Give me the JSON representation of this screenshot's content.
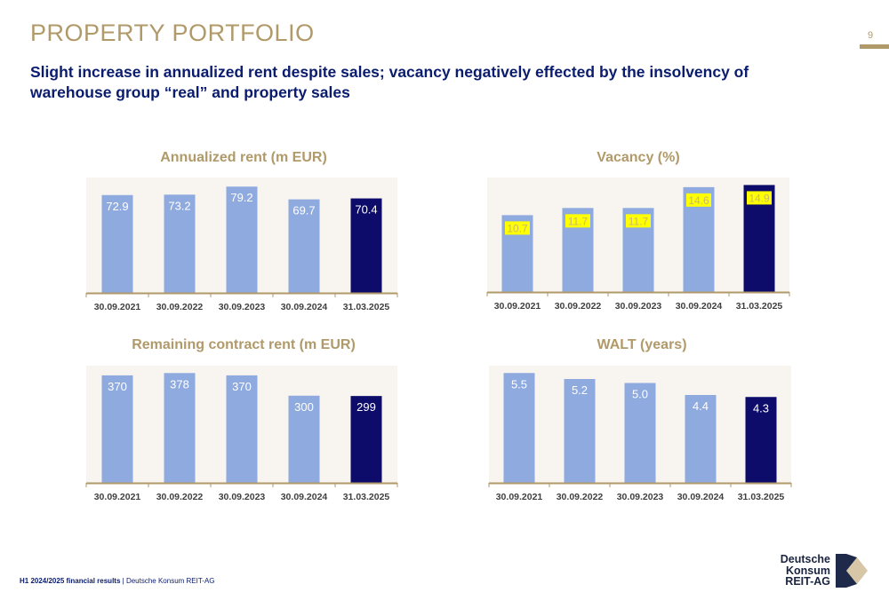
{
  "header": {
    "title": "PROPERTY PORTFOLIO",
    "page_number": "9",
    "subtitle": "Slight increase in annualized rent despite sales; vacancy negatively effected by the insolvency of warehouse group “real” and property sales"
  },
  "colors": {
    "bar_light": "#8eaadf",
    "bar_dark": "#0d0c6b",
    "accent_gold": "#b19a6a",
    "panel_bg": "#f8f4ef",
    "label_highlight": "#ffff00"
  },
  "chart_data": [
    {
      "type": "bar",
      "title": "Annualized rent (m EUR)",
      "categories": [
        "30.09.2021",
        "30.09.2022",
        "30.09.2023",
        "30.09.2024",
        "31.03.2025"
      ],
      "values": [
        72.9,
        73.2,
        79.2,
        69.7,
        70.4
      ],
      "labels": [
        "72.9",
        "73.2",
        "79.2",
        "69.7",
        "70.4"
      ],
      "highlight_last": true,
      "grid": false
    },
    {
      "type": "bar",
      "title": "Vacancy (%)",
      "categories": [
        "30.09.2021",
        "30.09.2022",
        "30.09.2023",
        "30.09.2024",
        "31.03.2025"
      ],
      "values": [
        10.7,
        11.7,
        11.7,
        14.6,
        14.9
      ],
      "labels": [
        "10.7",
        "11.7",
        "11.7",
        "14.6",
        "14.9"
      ],
      "highlight_last": true,
      "label_style": "highlighted",
      "grid": false
    },
    {
      "type": "bar",
      "title": "Remaining contract rent (m EUR)",
      "categories": [
        "30.09.2021",
        "30.09.2022",
        "30.09.2023",
        "30.09.2024",
        "31.03.2025"
      ],
      "values": [
        370,
        378,
        370,
        300,
        299
      ],
      "labels": [
        "370",
        "378",
        "370",
        "300",
        "299"
      ],
      "highlight_last": true,
      "grid": false
    },
    {
      "type": "bar",
      "title": "WALT (years)",
      "categories": [
        "30.09.2021",
        "30.09.2022",
        "30.09.2023",
        "30.09.2024",
        "31.03.2025"
      ],
      "values": [
        5.5,
        5.2,
        5.0,
        4.4,
        4.3
      ],
      "labels": [
        "5.5",
        "5.2",
        "5.0",
        "4.4",
        "4.3"
      ],
      "highlight_last": true,
      "grid": false
    }
  ],
  "footer": {
    "report": "H1 2024/2025 financial results",
    "separator": " | ",
    "company": "Deutsche Konsum REIT-AG"
  },
  "logo": {
    "line1": "Deutsche",
    "line2": "Konsum",
    "line3": "REIT-AG"
  }
}
